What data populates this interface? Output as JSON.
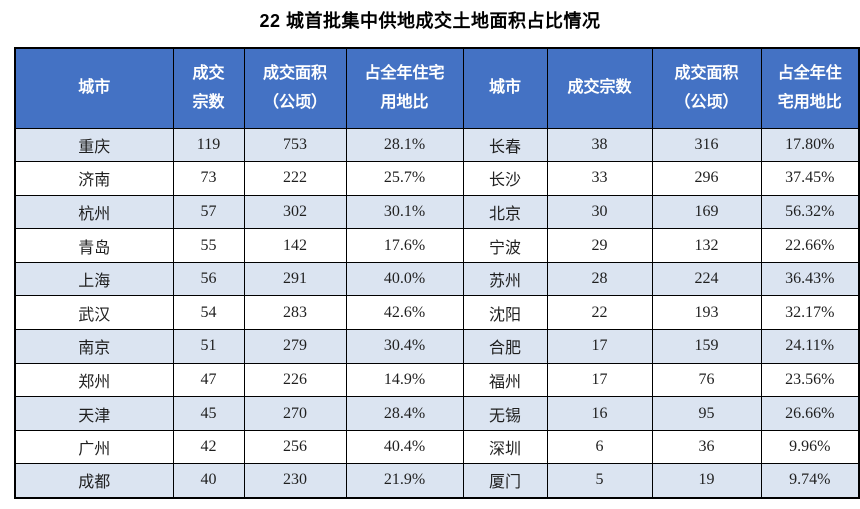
{
  "title": "22 城首批集中供地成交土地面积占比情况",
  "colors": {
    "header_bg": "#4472C4",
    "header_text": "#FFFFFF",
    "band_row_bg": "#DBE4F1",
    "plain_row_bg": "#FFFFFF",
    "border": "#000000",
    "cell_text": "#1F1F1F"
  },
  "table": {
    "header_left": {
      "city": "城市",
      "deals_line1": "成交",
      "deals_line2": "宗数",
      "area_line1": "成交面积",
      "area_line2": "（公顷）",
      "share_line1": "占全年住宅",
      "share_line2": "用地比"
    },
    "header_right": {
      "city": "城市",
      "deals": "成交宗数",
      "area_line1": "成交面积",
      "area_line2": "（公顷）",
      "share_line1": "占全年住",
      "share_line2": "宅用地比"
    },
    "rows": [
      {
        "left": [
          "重庆",
          "119",
          "753",
          "28.1%"
        ],
        "right": [
          "长春",
          "38",
          "316",
          "17.80%"
        ]
      },
      {
        "left": [
          "济南",
          "73",
          "222",
          "25.7%"
        ],
        "right": [
          "长沙",
          "33",
          "296",
          "37.45%"
        ]
      },
      {
        "left": [
          "杭州",
          "57",
          "302",
          "30.1%"
        ],
        "right": [
          "北京",
          "30",
          "169",
          "56.32%"
        ]
      },
      {
        "left": [
          "青岛",
          "55",
          "142",
          "17.6%"
        ],
        "right": [
          "宁波",
          "29",
          "132",
          "22.66%"
        ]
      },
      {
        "left": [
          "上海",
          "56",
          "291",
          "40.0%"
        ],
        "right": [
          "苏州",
          "28",
          "224",
          "36.43%"
        ]
      },
      {
        "left": [
          "武汉",
          "54",
          "283",
          "42.6%"
        ],
        "right": [
          "沈阳",
          "22",
          "193",
          "32.17%"
        ]
      },
      {
        "left": [
          "南京",
          "51",
          "279",
          "30.4%"
        ],
        "right": [
          "合肥",
          "17",
          "159",
          "24.11%"
        ]
      },
      {
        "left": [
          "郑州",
          "47",
          "226",
          "14.9%"
        ],
        "right": [
          "福州",
          "17",
          "76",
          "23.56%"
        ]
      },
      {
        "left": [
          "天津",
          "45",
          "270",
          "28.4%"
        ],
        "right": [
          "无锡",
          "16",
          "95",
          "26.66%"
        ]
      },
      {
        "left": [
          "广州",
          "42",
          "256",
          "40.4%"
        ],
        "right": [
          "深圳",
          "6",
          "36",
          "9.96%"
        ]
      },
      {
        "left": [
          "成都",
          "40",
          "230",
          "21.9%"
        ],
        "right": [
          "厦门",
          "5",
          "19",
          "9.74%"
        ]
      }
    ]
  },
  "chart_data": {
    "type": "table",
    "title": "22 城首批集中供地成交土地面积占比情况",
    "columns": [
      "城市",
      "成交宗数",
      "成交面积（公顷）",
      "占全年住宅用地比"
    ],
    "layout": "two side-by-side panels of 11 rows each; header row blue, odd data rows banded light blue",
    "rows": [
      [
        "重庆",
        119,
        753,
        "28.1%"
      ],
      [
        "济南",
        73,
        222,
        "25.7%"
      ],
      [
        "杭州",
        57,
        302,
        "30.1%"
      ],
      [
        "青岛",
        55,
        142,
        "17.6%"
      ],
      [
        "上海",
        56,
        291,
        "40.0%"
      ],
      [
        "武汉",
        54,
        283,
        "42.6%"
      ],
      [
        "南京",
        51,
        279,
        "30.4%"
      ],
      [
        "郑州",
        47,
        226,
        "14.9%"
      ],
      [
        "天津",
        45,
        270,
        "28.4%"
      ],
      [
        "广州",
        42,
        256,
        "40.4%"
      ],
      [
        "成都",
        40,
        230,
        "21.9%"
      ],
      [
        "长春",
        38,
        316,
        "17.80%"
      ],
      [
        "长沙",
        33,
        296,
        "37.45%"
      ],
      [
        "北京",
        30,
        169,
        "56.32%"
      ],
      [
        "宁波",
        29,
        132,
        "22.66%"
      ],
      [
        "苏州",
        28,
        224,
        "36.43%"
      ],
      [
        "沈阳",
        22,
        193,
        "32.17%"
      ],
      [
        "合肥",
        17,
        159,
        "24.11%"
      ],
      [
        "福州",
        17,
        76,
        "23.56%"
      ],
      [
        "无锡",
        16,
        95,
        "26.66%"
      ],
      [
        "深圳",
        6,
        36,
        "9.96%"
      ],
      [
        "厦门",
        5,
        19,
        "9.74%"
      ]
    ]
  }
}
